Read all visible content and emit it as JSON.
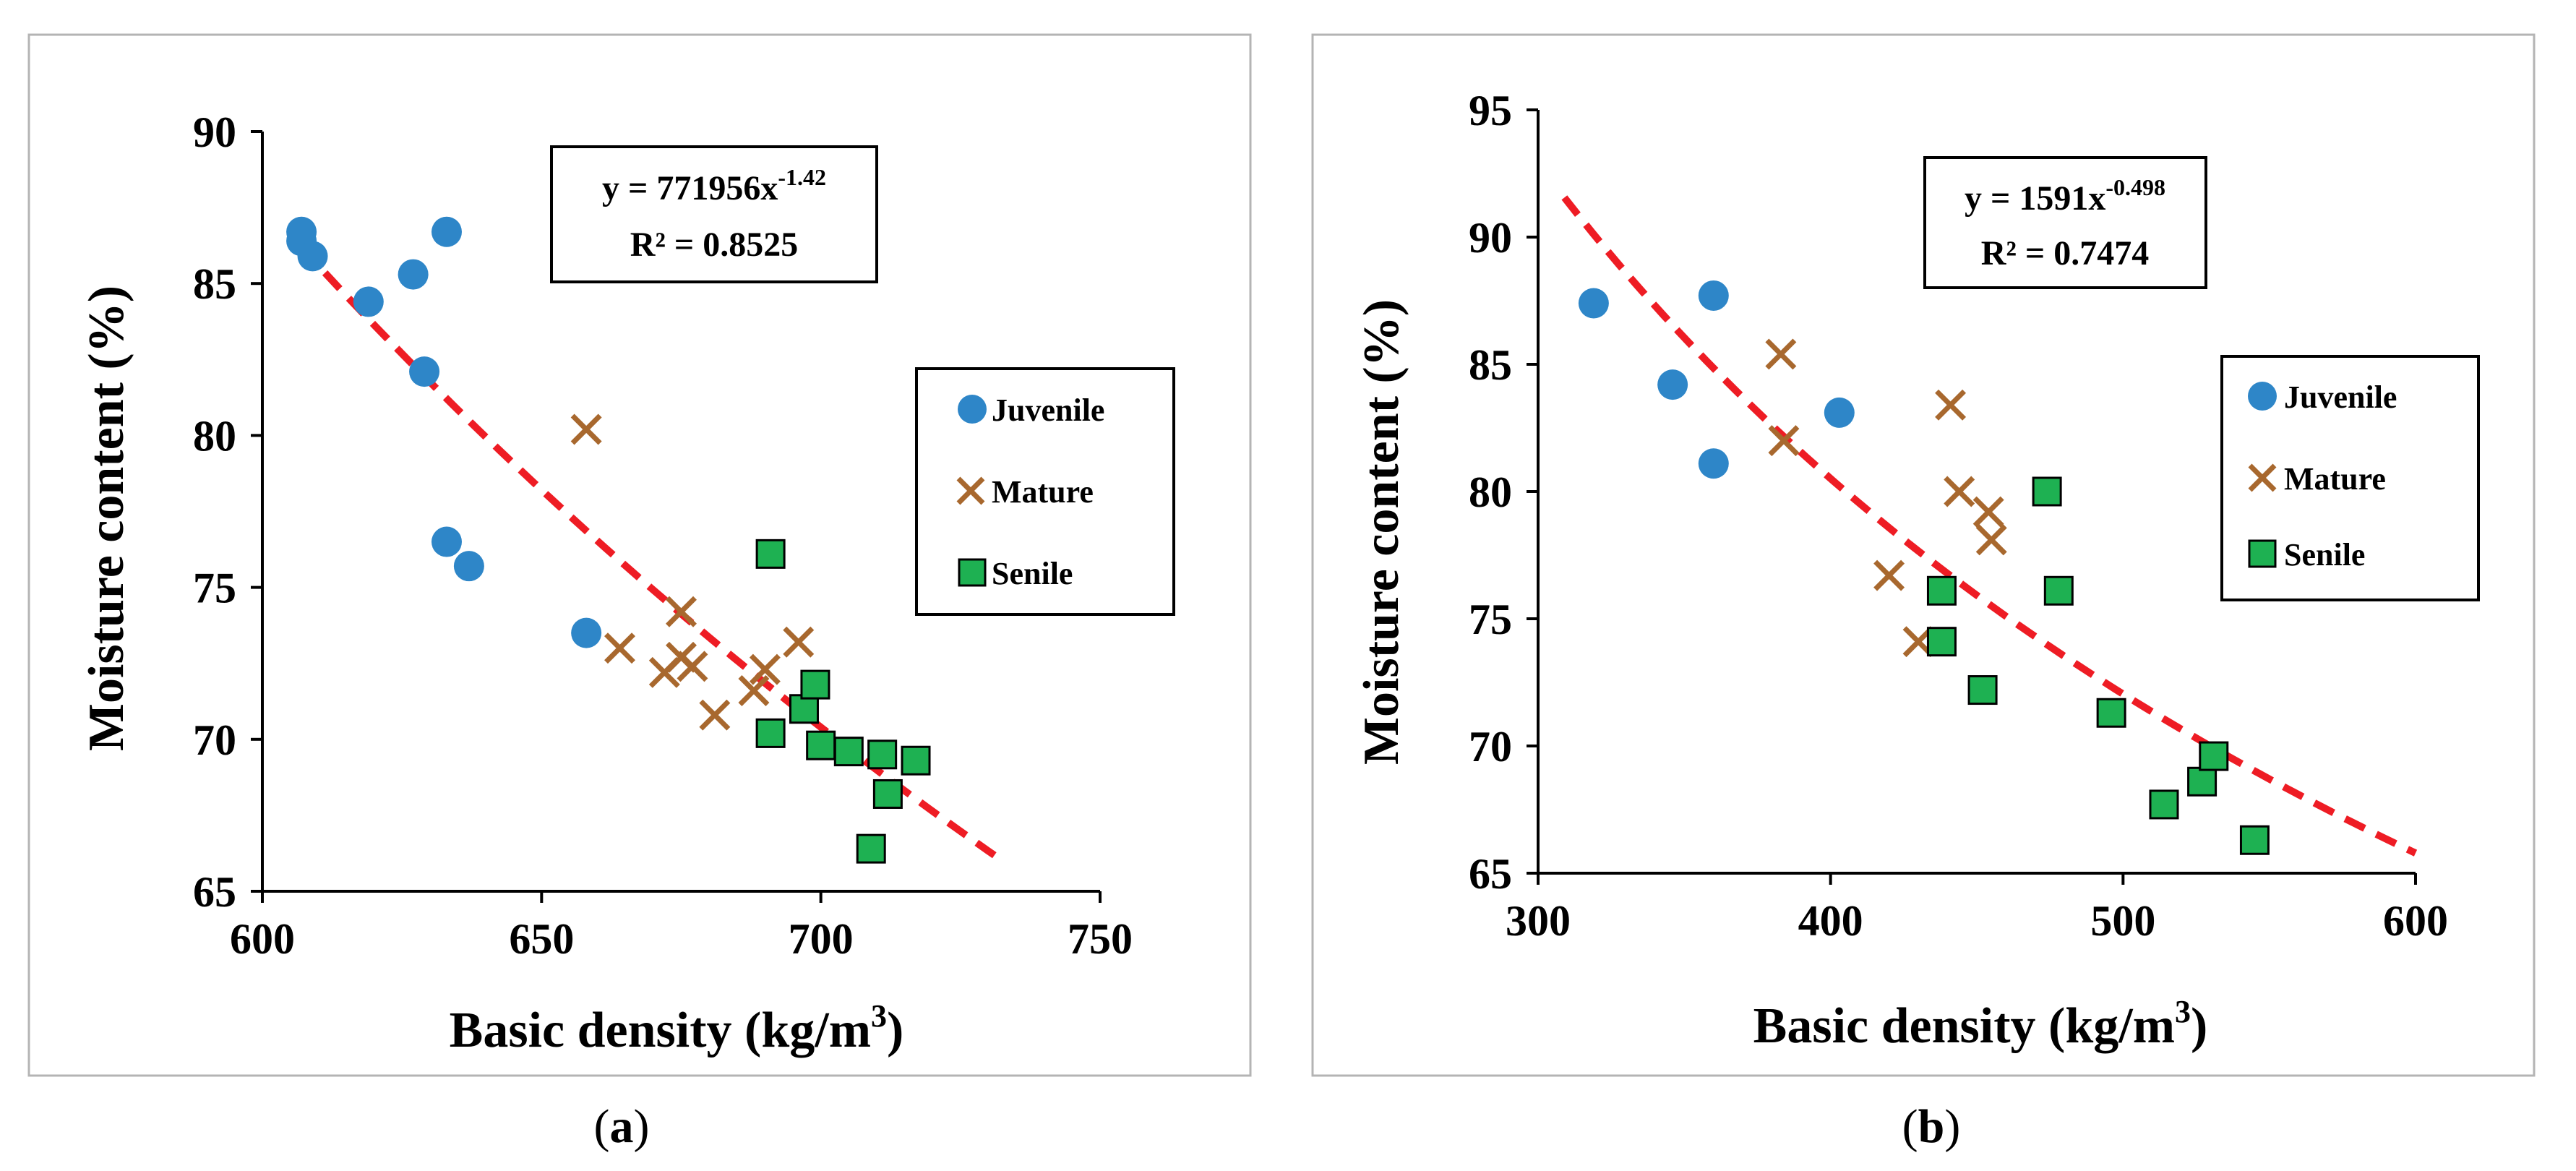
{
  "chart_data": [
    {
      "type": "scatter",
      "panel_label": "(a)",
      "panel_letter": "a",
      "xlabel": "Basic density  (kg/m³)",
      "xlabel_main": "Basic density  (kg/m",
      "xlabel_sup": "3",
      "xlabel_end": ")",
      "ylabel": "Moisture  content  (%)",
      "xlim": [
        600,
        750
      ],
      "ylim": [
        65,
        90
      ],
      "xticks": [
        600,
        650,
        700,
        750
      ],
      "yticks": [
        65,
        70,
        75,
        80,
        85,
        90
      ],
      "legend_position": "right",
      "series": [
        {
          "name": "Juvenile",
          "marker": "circle",
          "color": "#2e86c8",
          "x": [
            607,
            607,
            609,
            619,
            627,
            629,
            633,
            633,
            637,
            658
          ],
          "y": [
            86.7,
            86.4,
            85.9,
            84.4,
            85.3,
            82.1,
            86.7,
            76.5,
            75.7,
            73.5
          ]
        },
        {
          "name": "Mature",
          "marker": "x",
          "color": "#a8682e",
          "x": [
            658,
            664,
            672,
            675,
            675,
            677,
            681,
            688,
            690,
            696
          ],
          "y": [
            80.2,
            73.0,
            72.2,
            74.2,
            72.7,
            72.4,
            70.8,
            71.6,
            72.3,
            73.2
          ]
        },
        {
          "name": "Senile",
          "marker": "square",
          "color": "#1eb152",
          "x": [
            691,
            691,
            697,
            699,
            700,
            705,
            709,
            711,
            712,
            717
          ],
          "y": [
            76.1,
            70.2,
            71.0,
            71.8,
            69.8,
            69.6,
            66.4,
            69.5,
            68.2,
            69.3
          ]
        }
      ],
      "trendline": {
        "type": "power",
        "a": 771956,
        "b": -1.42,
        "x_range": [
          607,
          732
        ],
        "color": "#ee1c24"
      },
      "equation": {
        "prefix": "y = 771956x",
        "exponent": "-1.42",
        "r2": "R² = 0.8525"
      }
    },
    {
      "type": "scatter",
      "panel_label": "(b)",
      "panel_letter": "b",
      "xlabel": "Basic density (kg/m³)",
      "xlabel_main": "Basic density (kg/m",
      "xlabel_sup": "3",
      "xlabel_end": ")",
      "ylabel": "Moisture  content  (%)",
      "xlim": [
        300,
        600
      ],
      "ylim": [
        65,
        95
      ],
      "xticks": [
        300,
        400,
        500,
        600
      ],
      "yticks": [
        65,
        70,
        75,
        80,
        85,
        90,
        95
      ],
      "legend_position": "right",
      "series": [
        {
          "name": "Juvenile",
          "marker": "circle",
          "color": "#2e86c8",
          "x": [
            319,
            346,
            360,
            360,
            403
          ],
          "y": [
            87.4,
            84.2,
            87.7,
            81.1,
            83.1
          ]
        },
        {
          "name": "Mature",
          "marker": "x",
          "color": "#a8682e",
          "x": [
            383,
            384,
            420,
            430,
            441,
            444,
            454,
            455
          ],
          "y": [
            85.4,
            82.0,
            76.7,
            74.1,
            83.4,
            80.0,
            79.2,
            78.1
          ]
        },
        {
          "name": "Senile",
          "marker": "square",
          "color": "#1eb152",
          "x": [
            438,
            438,
            452,
            474,
            478,
            496,
            514,
            527,
            531,
            545
          ],
          "y": [
            76.1,
            74.1,
            72.2,
            80.0,
            76.1,
            71.3,
            67.7,
            68.6,
            69.6,
            66.3
          ]
        }
      ],
      "trendline": {
        "type": "power",
        "a": 1591,
        "b": -0.498,
        "x_range": [
          309,
          600
        ],
        "color": "#ee1c24"
      },
      "equation": {
        "prefix": "y = 1591x",
        "exponent": "-0.498",
        "r2": "R² = 0.7474"
      }
    }
  ]
}
